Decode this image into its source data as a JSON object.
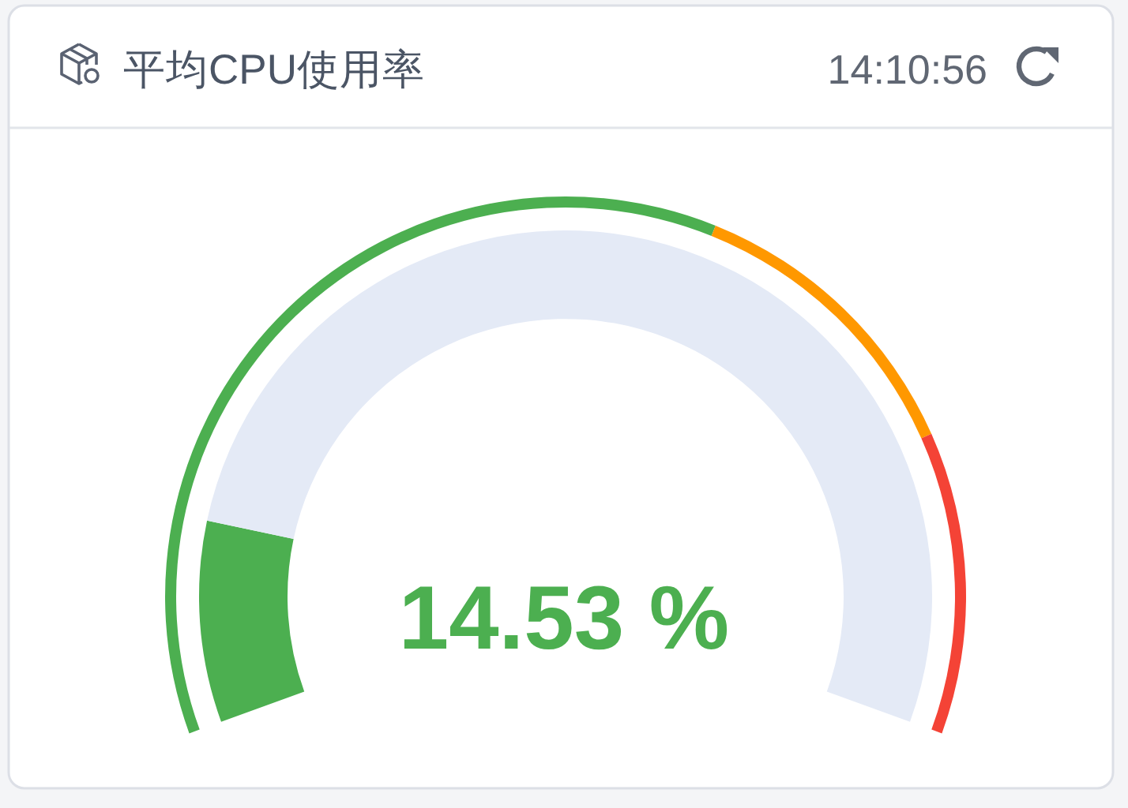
{
  "chart_data": [
    {
      "type": "donut",
      "title": "平均CPU使用率",
      "subtitle": "14:10:56",
      "categories": [
        null,
        null,
        null
      ],
      "values": [
        60,
        20,
        20
      ],
      "colors": [
        "#4caf50",
        "#ff9800",
        "#f44336"
      ]
    },
    {
      "type": "donut",
      "categories": [
        null,
        null
      ],
      "values": [
        14.53,
        85.47
      ],
      "colors": [
        "#4caf50",
        "#e4eaf6"
      ],
      "annotations": [
        "14.53 %"
      ]
    }
  ]
}
